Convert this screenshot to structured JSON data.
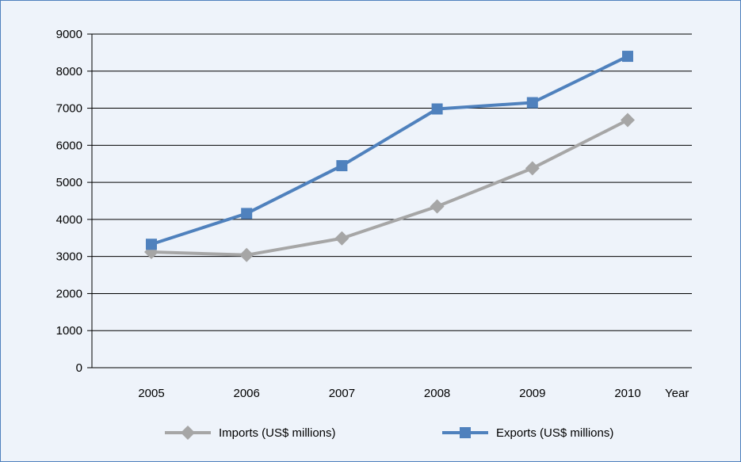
{
  "chart_data": {
    "type": "line",
    "title": "",
    "xlabel": "Year",
    "ylabel": "",
    "categories": [
      "2005",
      "2006",
      "2007",
      "2008",
      "2009",
      "2010"
    ],
    "ylim": [
      0,
      9000
    ],
    "yticks": [
      "0",
      "1000",
      "2000",
      "3000",
      "4000",
      "5000",
      "6000",
      "7000",
      "8000",
      "9000"
    ],
    "grid": true,
    "legend_position": "bottom",
    "series": [
      {
        "name": "Imports (US$ millions)",
        "color": "#a6a6a6",
        "marker": "diamond",
        "values": [
          3120,
          3040,
          3490,
          4350,
          5380,
          6680
        ]
      },
      {
        "name": "Exports (US$ millions)",
        "color": "#4f81bd",
        "marker": "square",
        "values": [
          3330,
          4160,
          5450,
          6980,
          7150,
          8400
        ]
      }
    ]
  }
}
